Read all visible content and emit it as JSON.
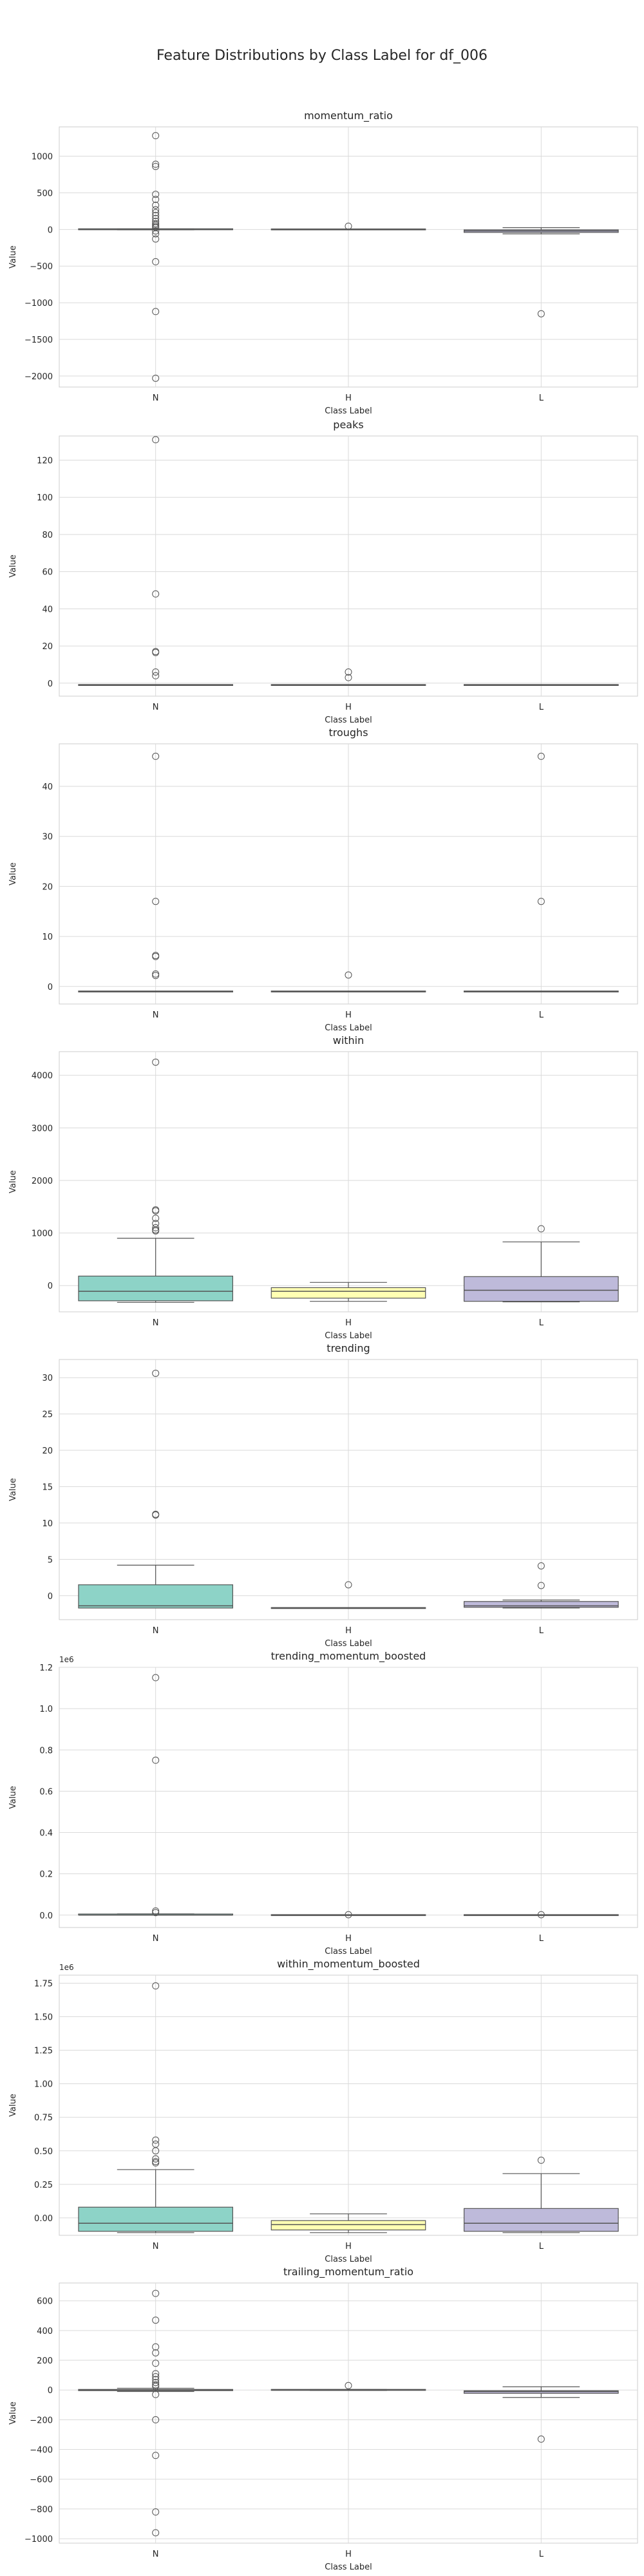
{
  "suptitle": "Feature Distributions by Class Label for df_006",
  "style": {
    "grid": true,
    "gridColor": "#dadada",
    "frameColor": "#cccccc",
    "background": "#ffffff"
  },
  "palette": {
    "N": "#8dd3c7",
    "H": "#ffffb3",
    "L": "#bebada"
  },
  "chart_data": [
    {
      "type": "box",
      "title": "momentum_ratio",
      "xlabel": "Class Label",
      "ylabel": "Value",
      "categories": [
        "N",
        "H",
        "L"
      ],
      "ylim": [
        -2150,
        1400
      ],
      "yticks": [
        -2000,
        -1500,
        -1000,
        -500,
        0,
        500,
        1000
      ],
      "ytick_labels": [
        "−2000",
        "−1500",
        "−1000",
        "−500",
        "0",
        "500",
        "1000"
      ],
      "boxes": [
        {
          "category": "N",
          "whislo": -5,
          "q1": -3,
          "med": 0,
          "q3": 3,
          "whishi": 8,
          "fliers": [
            1280,
            890,
            860,
            480,
            410,
            330,
            270,
            230,
            190,
            150,
            110,
            80,
            60,
            40,
            25,
            -20,
            -60,
            -130,
            -440,
            -1120,
            -2030
          ]
        },
        {
          "category": "H",
          "whislo": -2,
          "q1": -1,
          "med": 0,
          "q3": 1,
          "whishi": 3,
          "fliers": [
            45
          ]
        },
        {
          "category": "L",
          "whislo": -60,
          "q1": -40,
          "med": -20,
          "q3": -5,
          "whishi": 25,
          "fliers": [
            -1150
          ]
        }
      ]
    },
    {
      "type": "box",
      "title": "peaks",
      "xlabel": "Class Label",
      "ylabel": "Value",
      "categories": [
        "N",
        "H",
        "L"
      ],
      "ylim": [
        -7,
        133
      ],
      "yticks": [
        0,
        20,
        40,
        60,
        80,
        100,
        120
      ],
      "ytick_labels": [
        "0",
        "20",
        "40",
        "60",
        "80",
        "100",
        "120"
      ],
      "boxes": [
        {
          "category": "N",
          "whislo": -1,
          "q1": -1,
          "med": -1,
          "q3": -1,
          "whishi": -1,
          "fliers": [
            131,
            48,
            17,
            16.5,
            6,
            4
          ]
        },
        {
          "category": "H",
          "whislo": -1,
          "q1": -1,
          "med": -1,
          "q3": -1,
          "whishi": -1,
          "fliers": [
            6,
            3
          ]
        },
        {
          "category": "L",
          "whislo": -1,
          "q1": -1,
          "med": -1,
          "q3": -1,
          "whishi": -1,
          "fliers": []
        }
      ]
    },
    {
      "type": "box",
      "title": "troughs",
      "xlabel": "Class Label",
      "ylabel": "Value",
      "categories": [
        "N",
        "H",
        "L"
      ],
      "ylim": [
        -3.5,
        48.5
      ],
      "yticks": [
        0,
        10,
        20,
        30,
        40
      ],
      "ytick_labels": [
        "0",
        "10",
        "20",
        "30",
        "40"
      ],
      "boxes": [
        {
          "category": "N",
          "whislo": -1,
          "q1": -1,
          "med": -1,
          "q3": -1,
          "whishi": -1,
          "fliers": [
            46,
            17,
            6.2,
            6,
            2.5,
            2.2
          ]
        },
        {
          "category": "H",
          "whislo": -1,
          "q1": -1,
          "med": -1,
          "q3": -1,
          "whishi": -1,
          "fliers": [
            2.3
          ]
        },
        {
          "category": "L",
          "whislo": -1,
          "q1": -1,
          "med": -1,
          "q3": -1,
          "whishi": -1,
          "fliers": [
            46,
            17
          ]
        }
      ]
    },
    {
      "type": "box",
      "title": "within",
      "xlabel": "Class Label",
      "ylabel": "Value",
      "categories": [
        "N",
        "H",
        "L"
      ],
      "ylim": [
        -500,
        4450
      ],
      "yticks": [
        0,
        1000,
        2000,
        3000,
        4000
      ],
      "ytick_labels": [
        "0",
        "1000",
        "2000",
        "3000",
        "4000"
      ],
      "boxes": [
        {
          "category": "N",
          "whislo": -320,
          "q1": -290,
          "med": -110,
          "q3": 180,
          "whishi": 900,
          "fliers": [
            4250,
            1440,
            1420,
            1280,
            1180,
            1100,
            1060,
            1040
          ]
        },
        {
          "category": "H",
          "whislo": -300,
          "q1": -240,
          "med": -110,
          "q3": -40,
          "whishi": 60,
          "fliers": []
        },
        {
          "category": "L",
          "whislo": -310,
          "q1": -300,
          "med": -90,
          "q3": 170,
          "whishi": 830,
          "fliers": [
            1080
          ]
        }
      ]
    },
    {
      "type": "box",
      "title": "trending",
      "xlabel": "Class Label",
      "ylabel": "Value",
      "categories": [
        "N",
        "H",
        "L"
      ],
      "ylim": [
        -3.3,
        32.5
      ],
      "yticks": [
        0,
        5,
        10,
        15,
        20,
        25,
        30
      ],
      "ytick_labels": [
        "0",
        "5",
        "10",
        "15",
        "20",
        "25",
        "30"
      ],
      "boxes": [
        {
          "category": "N",
          "whislo": -1.7,
          "q1": -1.7,
          "med": -1.4,
          "q3": 1.5,
          "whishi": 4.2,
          "fliers": [
            30.6,
            11.2,
            11.1
          ]
        },
        {
          "category": "H",
          "whislo": -1.7,
          "q1": -1.7,
          "med": -1.7,
          "q3": -1.7,
          "whishi": -1.7,
          "fliers": [
            1.5
          ]
        },
        {
          "category": "L",
          "whislo": -1.7,
          "q1": -1.6,
          "med": -1.4,
          "q3": -0.8,
          "whishi": -0.6,
          "fliers": [
            4.1,
            1.4
          ]
        }
      ]
    },
    {
      "type": "box",
      "title": "trending_momentum_boosted",
      "xlabel": "Class Label",
      "ylabel": "Value",
      "offset_text": "1e6",
      "categories": [
        "N",
        "H",
        "L"
      ],
      "ylim": [
        -0.06,
        1.2
      ],
      "yticks": [
        0.0,
        0.2,
        0.4,
        0.6,
        0.8,
        1.0,
        1.2
      ],
      "ytick_labels": [
        "0.0",
        "0.2",
        "0.4",
        "0.6",
        "0.8",
        "1.0",
        "1.2"
      ],
      "boxes": [
        {
          "category": "N",
          "whislo": 0,
          "q1": 0,
          "med": 0,
          "q3": 0.003,
          "whishi": 0.006,
          "fliers": [
            1.15,
            0.75,
            0.02,
            0.012
          ]
        },
        {
          "category": "H",
          "whislo": 0,
          "q1": 0,
          "med": 0,
          "q3": 0,
          "whishi": 0,
          "fliers": [
            0.002
          ]
        },
        {
          "category": "L",
          "whislo": 0,
          "q1": 0,
          "med": 0,
          "q3": 0,
          "whishi": 0.001,
          "fliers": [
            0.002
          ]
        }
      ]
    },
    {
      "type": "box",
      "title": "within_momentum_boosted",
      "xlabel": "Class Label",
      "ylabel": "Value",
      "offset_text": "1e6",
      "categories": [
        "N",
        "H",
        "L"
      ],
      "ylim": [
        -0.13,
        1.81
      ],
      "yticks": [
        0.0,
        0.25,
        0.5,
        0.75,
        1.0,
        1.25,
        1.5,
        1.75
      ],
      "ytick_labels": [
        "0.00",
        "0.25",
        "0.50",
        "0.75",
        "1.00",
        "1.25",
        "1.50",
        "1.75"
      ],
      "boxes": [
        {
          "category": "N",
          "whislo": -0.11,
          "q1": -0.1,
          "med": -0.04,
          "q3": 0.08,
          "whishi": 0.36,
          "fliers": [
            1.73,
            0.58,
            0.55,
            0.5,
            0.44,
            0.42,
            0.41
          ]
        },
        {
          "category": "H",
          "whislo": -0.11,
          "q1": -0.09,
          "med": -0.05,
          "q3": -0.02,
          "whishi": 0.03,
          "fliers": []
        },
        {
          "category": "L",
          "whislo": -0.11,
          "q1": -0.1,
          "med": -0.04,
          "q3": 0.07,
          "whishi": 0.33,
          "fliers": [
            0.43
          ]
        }
      ]
    },
    {
      "type": "box",
      "title": "trailing_momentum_ratio",
      "xlabel": "Class Label",
      "ylabel": "Value",
      "categories": [
        "N",
        "H",
        "L"
      ],
      "ylim": [
        -1030,
        720
      ],
      "yticks": [
        -1000,
        -800,
        -600,
        -400,
        -200,
        0,
        200,
        400,
        600
      ],
      "ytick_labels": [
        "−1000",
        "−800",
        "−600",
        "−400",
        "−200",
        "0",
        "200",
        "400",
        "600"
      ],
      "boxes": [
        {
          "category": "N",
          "whislo": -10,
          "q1": -4,
          "med": 0,
          "q3": 4,
          "whishi": 12,
          "fliers": [
            650,
            470,
            290,
            250,
            180,
            110,
            90,
            70,
            50,
            35,
            25,
            -30,
            -200,
            -440,
            -820,
            -960
          ]
        },
        {
          "category": "H",
          "whislo": -3,
          "q1": -1,
          "med": 0,
          "q3": 1,
          "whishi": 4,
          "fliers": [
            30
          ]
        },
        {
          "category": "L",
          "whislo": -50,
          "q1": -22,
          "med": -10,
          "q3": -5,
          "whishi": 22,
          "fliers": [
            -330
          ]
        }
      ]
    }
  ]
}
